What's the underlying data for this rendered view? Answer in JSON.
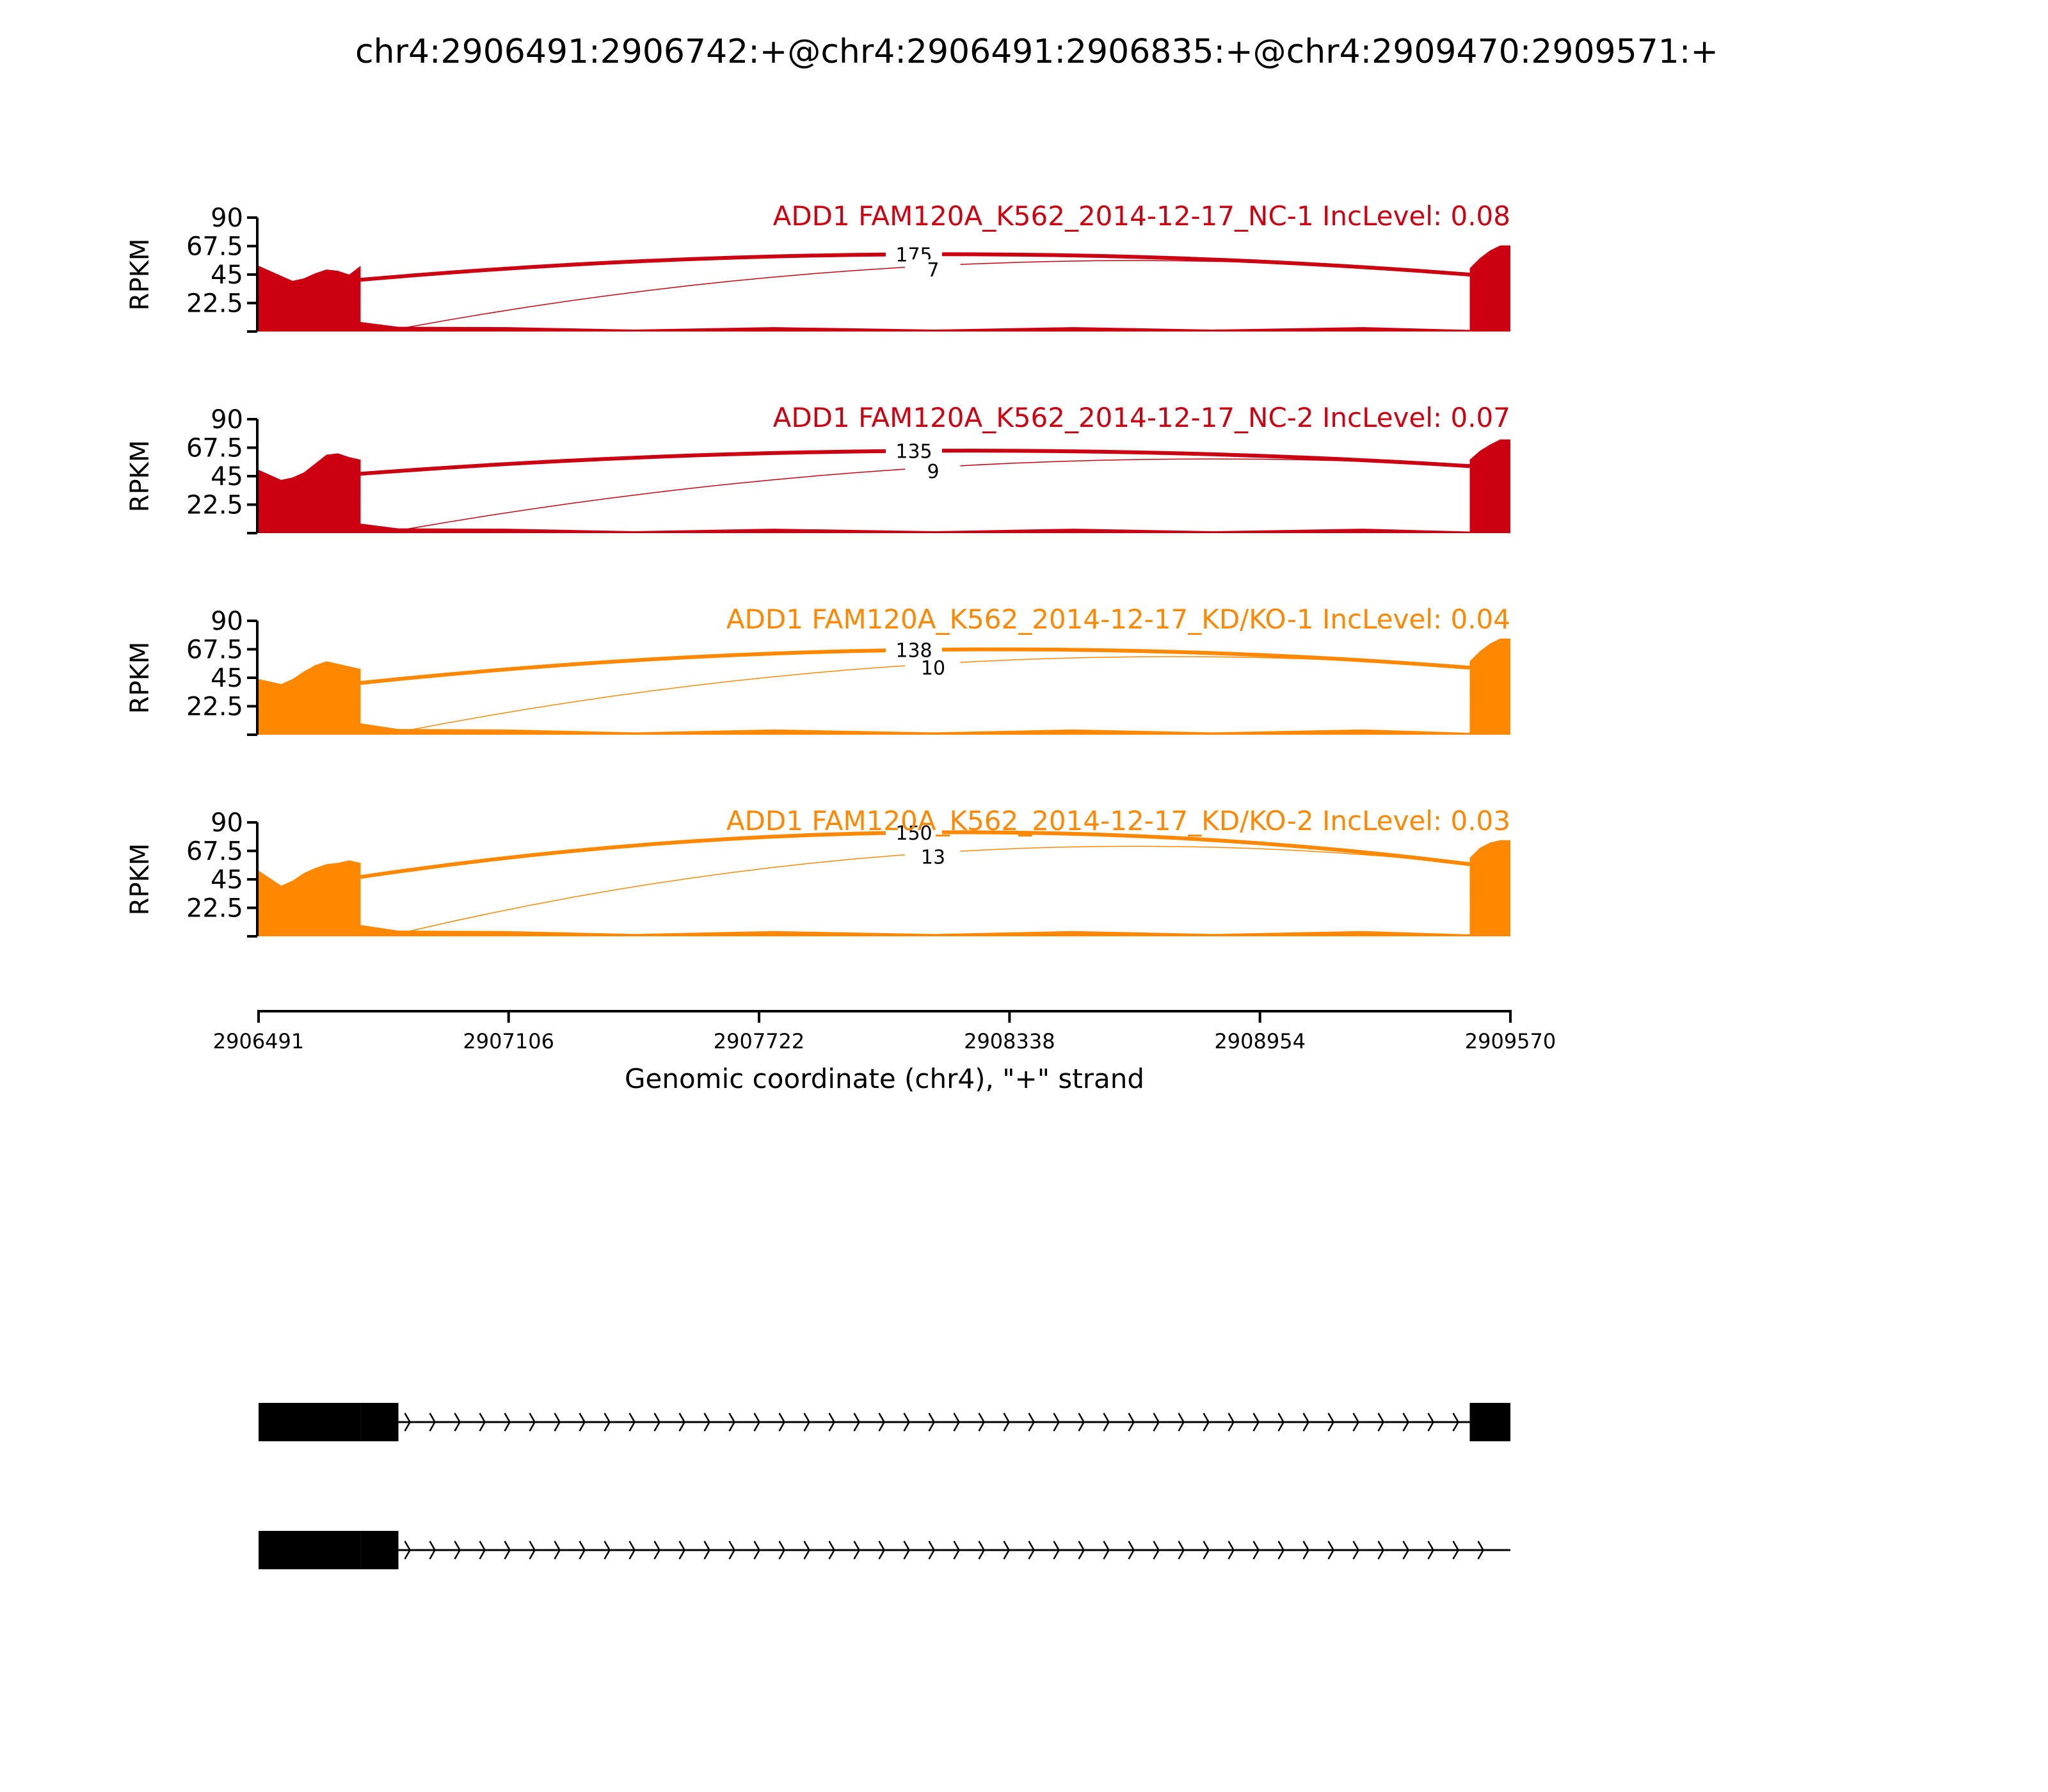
{
  "chart_data": {
    "type": "area",
    "title": "chr4:2906491:2906742:+@chr4:2906491:2906835:+@chr4:2909470:2909571:+",
    "xlabel": "Genomic coordinate (chr4), \"+\" strand",
    "ylabel": "RPKM",
    "xlim": [
      2906491,
      2909570
    ],
    "ylim": [
      0,
      90
    ],
    "x_ticks": [
      "2906491",
      "2907106",
      "2907722",
      "2908338",
      "2908954",
      "2909570"
    ],
    "y_ticks": [
      "22.5",
      "45",
      "67.5",
      "90"
    ],
    "grid": false,
    "colors": {
      "control": "#cc0011",
      "knockdown": "#ff8800"
    },
    "exons_bp": {
      "exon1": [
        2906491,
        2906742
      ],
      "exon1_extended": [
        2906491,
        2906835
      ],
      "exon2": [
        2909470,
        2909570
      ]
    },
    "samples": [
      {
        "label": "ADD1 FAM120A_K562_2014-12-17_NC-1 IncLevel: 0.08",
        "group": "control",
        "coverage": {
          "exon1": [
            52,
            48,
            44,
            40,
            42,
            46,
            49,
            48,
            45,
            52
          ],
          "intron": 2.5,
          "exon2": [
            50,
            58,
            64,
            68,
            68
          ]
        },
        "junctions": [
          {
            "reads": "175",
            "from": 2906742,
            "to": 2909470,
            "height": 61
          },
          {
            "reads": "7",
            "from": 2906835,
            "to": 2909470,
            "height": 52
          }
        ]
      },
      {
        "label": "ADD1 FAM120A_K562_2014-12-17_NC-2 IncLevel: 0.07",
        "group": "control",
        "coverage": {
          "exon1": [
            50,
            46,
            42,
            44,
            48,
            55,
            62,
            63,
            60,
            58
          ],
          "intron": 2.5,
          "exon2": [
            58,
            65,
            70,
            74,
            74
          ]
        },
        "junctions": [
          {
            "reads": "135",
            "from": 2906742,
            "to": 2909470,
            "height": 65
          },
          {
            "reads": "9",
            "from": 2906835,
            "to": 2909470,
            "height": 52
          }
        ]
      },
      {
        "label": "ADD1 FAM120A_K562_2014-12-17_KD/KO-1 IncLevel: 0.04",
        "group": "knockdown",
        "coverage": {
          "exon1": [
            44,
            42,
            40,
            44,
            50,
            55,
            58,
            56,
            54,
            52
          ],
          "intron": 3,
          "exon2": [
            58,
            66,
            72,
            76,
            76
          ]
        },
        "junctions": [
          {
            "reads": "138",
            "from": 2906742,
            "to": 2909470,
            "height": 67
          },
          {
            "reads": "10",
            "from": 2906835,
            "to": 2909470,
            "height": 56
          }
        ]
      },
      {
        "label": "ADD1 FAM120A_K562_2014-12-17_KD/KO-2 IncLevel: 0.03",
        "group": "knockdown",
        "coverage": {
          "exon1": [
            52,
            46,
            40,
            44,
            50,
            54,
            57,
            58,
            60,
            58
          ],
          "intron": 3,
          "exon2": [
            62,
            70,
            74,
            76,
            76
          ]
        },
        "junctions": [
          {
            "reads": "150",
            "from": 2906742,
            "to": 2909470,
            "height": 82
          },
          {
            "reads": "13",
            "from": 2906835,
            "to": 2909470,
            "height": 66
          }
        ]
      }
    ],
    "isoforms": [
      {
        "exons": [
          [
            2906491,
            2906742
          ],
          [
            2906742,
            2906835
          ],
          [
            2909470,
            2909570
          ]
        ]
      },
      {
        "exons": [
          [
            2906491,
            2906742
          ],
          [
            2906742,
            2906835
          ]
        ]
      }
    ]
  }
}
